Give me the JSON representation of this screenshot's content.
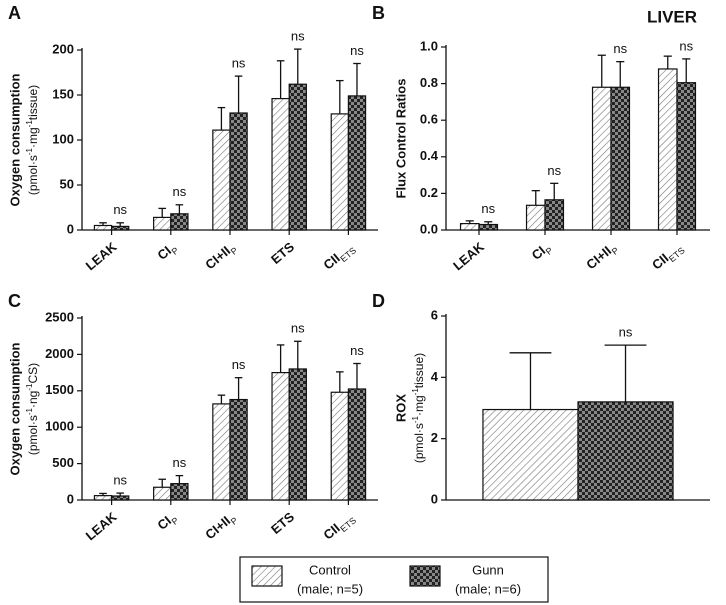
{
  "title": "LIVER",
  "legend": [
    {
      "name": "Control",
      "detail": "(male; n=5)",
      "pattern": "hatch"
    },
    {
      "name": "Gunn",
      "detail": "(male; n=6)",
      "pattern": "checker"
    }
  ],
  "chart_data": [
    {
      "type": "bar",
      "label": "A",
      "ylabel": "Oxygen consumption",
      "ylabel_unit": [
        "(pmol·s",
        "-1",
        "·mg",
        "-1",
        "tissue)"
      ],
      "categories": [
        {
          "text": "LEAK"
        },
        {
          "text": "CI",
          "sub": "P"
        },
        {
          "text": "CI+II",
          "sub": "P"
        },
        {
          "text": "ETS"
        },
        {
          "text": "CII",
          "sub": "ETS"
        }
      ],
      "ylim": [
        0,
        200
      ],
      "yticks": [
        0,
        50,
        100,
        150,
        200
      ],
      "series": [
        {
          "pattern": "hatch",
          "values": [
            5,
            14,
            111,
            146,
            129
          ],
          "errors": [
            3,
            10,
            25,
            42,
            37
          ]
        },
        {
          "pattern": "checker",
          "values": [
            4,
            18,
            130,
            162,
            149
          ],
          "errors": [
            4,
            10,
            41,
            39,
            36
          ]
        }
      ],
      "significance": [
        "ns",
        "ns",
        "ns",
        "ns",
        "ns"
      ]
    },
    {
      "type": "bar",
      "label": "B",
      "ylabel": "Flux Control Ratios",
      "categories": [
        {
          "text": "LEAK"
        },
        {
          "text": "CI",
          "sub": "P"
        },
        {
          "text": "CI+II",
          "sub": "P"
        },
        {
          "text": "CII",
          "sub": "ETS"
        }
      ],
      "ylim": [
        0,
        1
      ],
      "yticks": [
        {
          "value": 0,
          "label": "0.0"
        },
        0.2,
        0.4,
        0.6,
        0.8,
        {
          "value": 1,
          "label": "1.0"
        }
      ],
      "series": [
        {
          "pattern": "hatch",
          "values": [
            0.035,
            0.135,
            0.78,
            0.88
          ],
          "errors": [
            0.015,
            0.08,
            0.175,
            0.07
          ]
        },
        {
          "pattern": "checker",
          "values": [
            0.03,
            0.165,
            0.78,
            0.805
          ],
          "errors": [
            0.015,
            0.09,
            0.14,
            0.13
          ]
        }
      ],
      "significance": [
        "ns",
        "ns",
        "ns",
        "ns"
      ]
    },
    {
      "type": "bar",
      "label": "C",
      "ylabel": "Oxygen consumption",
      "ylabel_unit": [
        "(pmol·s",
        "-1",
        "·ng",
        "-1",
        "CS)"
      ],
      "categories": [
        {
          "text": "LEAK"
        },
        {
          "text": "CI",
          "sub": "P"
        },
        {
          "text": "CI+II",
          "sub": "P"
        },
        {
          "text": "ETS"
        },
        {
          "text": "CII",
          "sub": "ETS"
        }
      ],
      "ylim": [
        0,
        2500
      ],
      "yticks": [
        0,
        500,
        1000,
        1500,
        2000,
        2500
      ],
      "series": [
        {
          "pattern": "hatch",
          "values": [
            60,
            175,
            1320,
            1750,
            1480
          ],
          "errors": [
            30,
            110,
            120,
            380,
            280
          ]
        },
        {
          "pattern": "checker",
          "values": [
            55,
            225,
            1380,
            1800,
            1525
          ],
          "errors": [
            40,
            110,
            300,
            380,
            350
          ]
        }
      ],
      "significance": [
        "ns",
        "ns",
        "ns",
        "ns",
        "ns"
      ]
    },
    {
      "type": "bar",
      "label": "D",
      "ylabel": "ROX",
      "ylabel_unit": [
        "(pmol·s",
        "-1",
        "·mg",
        "-1",
        "tissue)"
      ],
      "categories": [
        null
      ],
      "ylim": [
        0,
        6
      ],
      "yticks": [
        0,
        2,
        4,
        6
      ],
      "series": [
        {
          "pattern": "hatch",
          "values": [
            2.95
          ],
          "errors": [
            1.85
          ]
        },
        {
          "pattern": "checker",
          "values": [
            3.2
          ],
          "errors": [
            1.85
          ]
        }
      ],
      "significance": [
        "ns"
      ]
    }
  ]
}
